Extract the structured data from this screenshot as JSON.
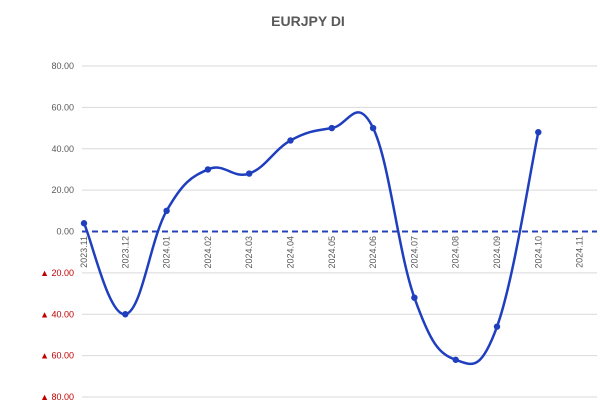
{
  "chart_data": {
    "type": "line",
    "title": "EURJPY DI",
    "xlabel": "",
    "ylabel": "",
    "categories": [
      "2023.11",
      "2023.12",
      "2024.01",
      "2024.02",
      "2024.03",
      "2024.04",
      "2024.05",
      "2024.06",
      "2024.07",
      "2024.08",
      "2024.09",
      "2024.10",
      "2024.11"
    ],
    "series": [
      {
        "values": [
          4,
          -40,
          10,
          30,
          28,
          44,
          50,
          50,
          -32,
          -62,
          -46,
          48,
          null
        ]
      }
    ],
    "ylim": [
      -80,
      80
    ],
    "yticks": [
      80,
      60,
      40,
      20,
      0,
      -20,
      -40,
      -60,
      -80
    ],
    "ytick_labels": [
      "80.00",
      "60.00",
      "40.00",
      "20.00",
      "0.00",
      "▲ 20.00",
      "▲ 40.00",
      "▲ 60.00",
      "▲ 80.00"
    ],
    "zero_line": "dashed",
    "grid": true,
    "legend": "none",
    "colors": {
      "line": "#1f3fbf",
      "zero_line": "#2443b8",
      "negative_label": "#c00000",
      "text": "#595959",
      "grid": "#d9d9d9"
    }
  }
}
